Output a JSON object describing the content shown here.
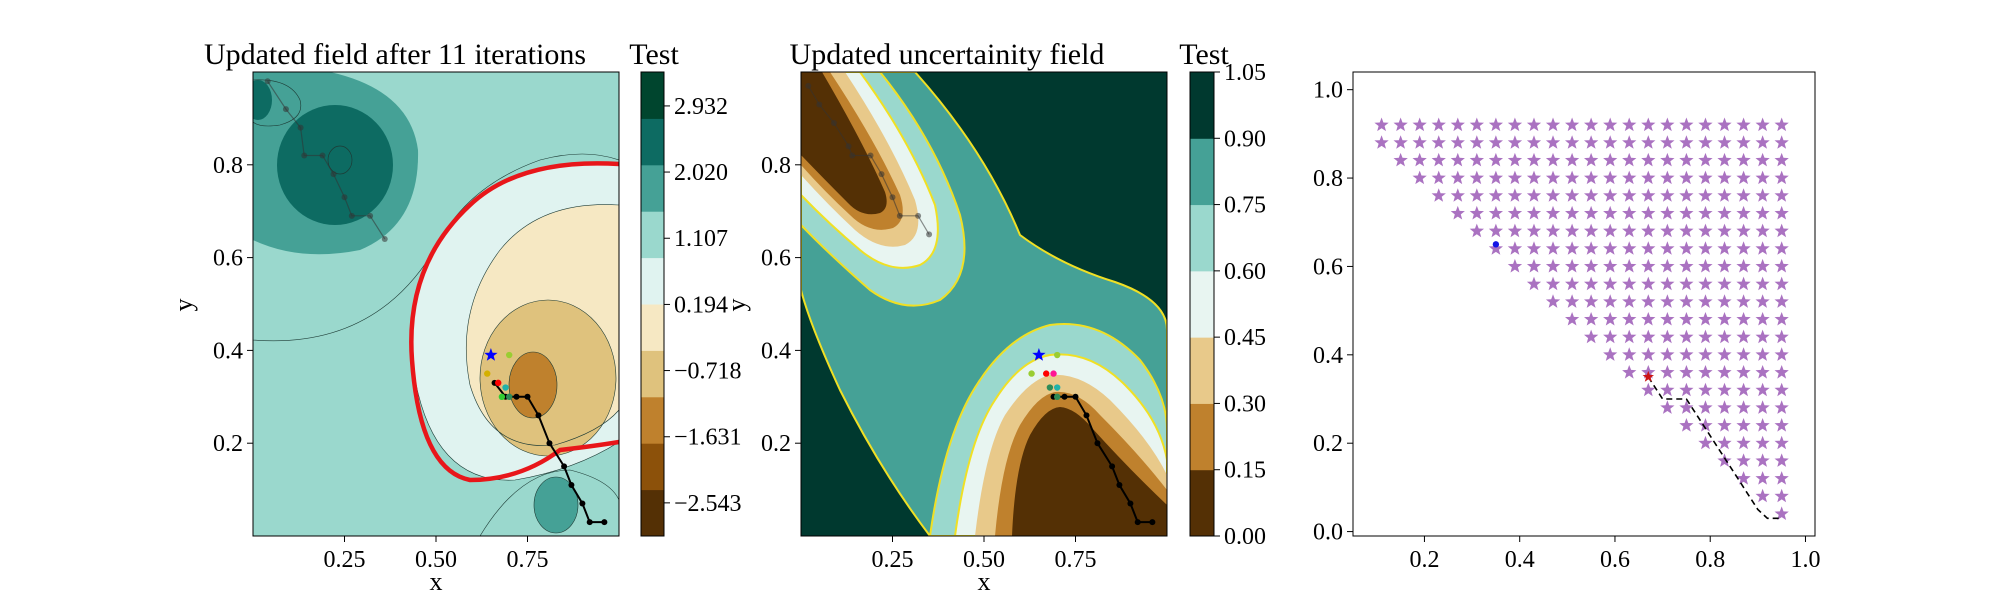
{
  "panels": [
    {
      "title": "Updated field after 11 iterations",
      "colorbar_title": "Test",
      "xlabel": "x",
      "ylabel": "y",
      "xticks": [
        "0.25",
        "0.50",
        "0.75"
      ],
      "yticks": [
        "0.2",
        "0.4",
        "0.6",
        "0.8"
      ],
      "colorbar_ticks": [
        "2.932",
        "2.020",
        "1.107",
        "0.194",
        "−0.718",
        "−1.631",
        "−2.543"
      ]
    },
    {
      "title": "Updated uncertainity field",
      "colorbar_title": "Test",
      "xlabel": "x",
      "ylabel": "y",
      "xticks": [
        "0.25",
        "0.50",
        "0.75"
      ],
      "yticks": [
        "0.2",
        "0.4",
        "0.6",
        "0.8"
      ],
      "colorbar_ticks": [
        "1.05",
        "0.90",
        "0.75",
        "0.60",
        "0.45",
        "0.30",
        "0.15",
        "0.00"
      ]
    },
    {
      "xticks": [
        "0.2",
        "0.4",
        "0.6",
        "0.8",
        "1.0"
      ],
      "yticks": [
        "0.0",
        "0.2",
        "0.4",
        "0.6",
        "0.8",
        "1.0"
      ]
    }
  ],
  "colors": {
    "field_levels": [
      "#543005",
      "#8c510a",
      "#bf812d",
      "#dfc27d",
      "#f6e8c3",
      "#e0f3f0",
      "#9ad8cd",
      "#45a196",
      "#0d6b62",
      "#00452e"
    ],
    "uncertainty_levels": [
      "#543005",
      "#bf812d",
      "#e8c98a",
      "#e8f5f1",
      "#9ad8cd",
      "#45a196",
      "#00392f"
    ],
    "zero_contour": "#e8161a",
    "uncertainty_contour": "#f0e024",
    "path": "#000000",
    "candidates": "#9b59b6",
    "current_point": "#1414e6",
    "selected_point": "#cc1414"
  },
  "chart_data": [
    {
      "type": "heatmap",
      "title": "Updated field after 11 iterations",
      "xlabel": "x",
      "ylabel": "y",
      "xlim": [
        0.0,
        1.0
      ],
      "ylim": [
        0.0,
        1.0
      ],
      "colorbar_label": "Test",
      "colorbar_range": [
        -3.0,
        3.4
      ],
      "colorbar_levels": [
        -2.543,
        -1.631,
        -0.718,
        0.194,
        1.107,
        2.02,
        2.932
      ],
      "highlighted_contour": {
        "level": 0,
        "color": "red"
      },
      "path": [
        [
          0.04,
          0.98
        ],
        [
          0.09,
          0.92
        ],
        [
          0.13,
          0.88
        ],
        [
          0.14,
          0.82
        ],
        [
          0.19,
          0.82
        ],
        [
          0.22,
          0.78
        ],
        [
          0.25,
          0.73
        ],
        [
          0.27,
          0.69
        ],
        [
          0.32,
          0.69
        ],
        [
          0.36,
          0.64
        ]
      ],
      "path2": [
        [
          0.66,
          0.33
        ],
        [
          0.69,
          0.3
        ],
        [
          0.72,
          0.3
        ],
        [
          0.75,
          0.3
        ],
        [
          0.78,
          0.26
        ],
        [
          0.81,
          0.2
        ],
        [
          0.85,
          0.15
        ],
        [
          0.87,
          0.11
        ],
        [
          0.9,
          0.07
        ],
        [
          0.92,
          0.03
        ],
        [
          0.96,
          0.03
        ]
      ],
      "markers": [
        {
          "x": 0.65,
          "y": 0.39,
          "color": "blue",
          "shape": "star"
        },
        {
          "x": 0.64,
          "y": 0.35,
          "color": "#d4b000",
          "shape": "dot"
        },
        {
          "x": 0.7,
          "y": 0.39,
          "color": "#9acd32",
          "shape": "dot"
        },
        {
          "x": 0.67,
          "y": 0.33,
          "color": "red",
          "shape": "dot"
        },
        {
          "x": 0.69,
          "y": 0.32,
          "color": "#20b2aa",
          "shape": "dot"
        },
        {
          "x": 0.7,
          "y": 0.3,
          "color": "#2e8b57",
          "shape": "dot"
        },
        {
          "x": 0.68,
          "y": 0.3,
          "color": "#32cd32",
          "shape": "dot"
        }
      ]
    },
    {
      "type": "heatmap",
      "title": "Updated uncertainity field",
      "xlabel": "x",
      "ylabel": "y",
      "xlim": [
        0.0,
        1.0
      ],
      "ylim": [
        0.0,
        1.0
      ],
      "colorbar_label": "Test",
      "colorbar_range": [
        0.0,
        1.05
      ],
      "colorbar_levels": [
        0.0,
        0.15,
        0.3,
        0.45,
        0.6,
        0.75,
        0.9,
        1.05
      ],
      "path": [
        [
          0.02,
          0.97
        ],
        [
          0.05,
          0.93
        ],
        [
          0.09,
          0.89
        ],
        [
          0.13,
          0.84
        ],
        [
          0.14,
          0.82
        ],
        [
          0.19,
          0.82
        ],
        [
          0.22,
          0.78
        ],
        [
          0.25,
          0.73
        ],
        [
          0.27,
          0.69
        ],
        [
          0.32,
          0.69
        ],
        [
          0.35,
          0.65
        ]
      ],
      "path2": [
        [
          0.69,
          0.3
        ],
        [
          0.72,
          0.3
        ],
        [
          0.75,
          0.3
        ],
        [
          0.78,
          0.26
        ],
        [
          0.81,
          0.2
        ],
        [
          0.85,
          0.15
        ],
        [
          0.87,
          0.11
        ],
        [
          0.9,
          0.07
        ],
        [
          0.92,
          0.03
        ],
        [
          0.96,
          0.03
        ]
      ],
      "markers": [
        {
          "x": 0.65,
          "y": 0.39,
          "color": "blue",
          "shape": "star"
        },
        {
          "x": 0.63,
          "y": 0.35,
          "color": "#9acd32",
          "shape": "dot"
        },
        {
          "x": 0.7,
          "y": 0.39,
          "color": "#9acd32",
          "shape": "dot"
        },
        {
          "x": 0.67,
          "y": 0.35,
          "color": "red",
          "shape": "dot"
        },
        {
          "x": 0.69,
          "y": 0.35,
          "color": "#ff1493",
          "shape": "dot"
        },
        {
          "x": 0.7,
          "y": 0.32,
          "color": "#20b2aa",
          "shape": "dot"
        },
        {
          "x": 0.68,
          "y": 0.32,
          "color": "#2e8b57",
          "shape": "dot"
        },
        {
          "x": 0.7,
          "y": 0.3,
          "color": "#2e8b57",
          "shape": "dot"
        }
      ]
    },
    {
      "type": "scatter",
      "xlim": [
        0.05,
        1.02
      ],
      "ylim": [
        -0.01,
        1.04
      ],
      "candidates": {
        "x_start": 0.1,
        "step": 0.04,
        "rows": 23,
        "marker": "star"
      },
      "current_point": {
        "x": 0.35,
        "y": 0.65
      },
      "selected_point": {
        "x": 0.67,
        "y": 0.35
      },
      "path": [
        [
          0.67,
          0.35
        ],
        [
          0.7,
          0.3
        ],
        [
          0.75,
          0.3
        ],
        [
          0.78,
          0.25
        ],
        [
          0.81,
          0.2
        ],
        [
          0.84,
          0.15
        ],
        [
          0.87,
          0.1
        ],
        [
          0.9,
          0.05
        ],
        [
          0.92,
          0.03
        ],
        [
          0.95,
          0.03
        ]
      ]
    }
  ]
}
